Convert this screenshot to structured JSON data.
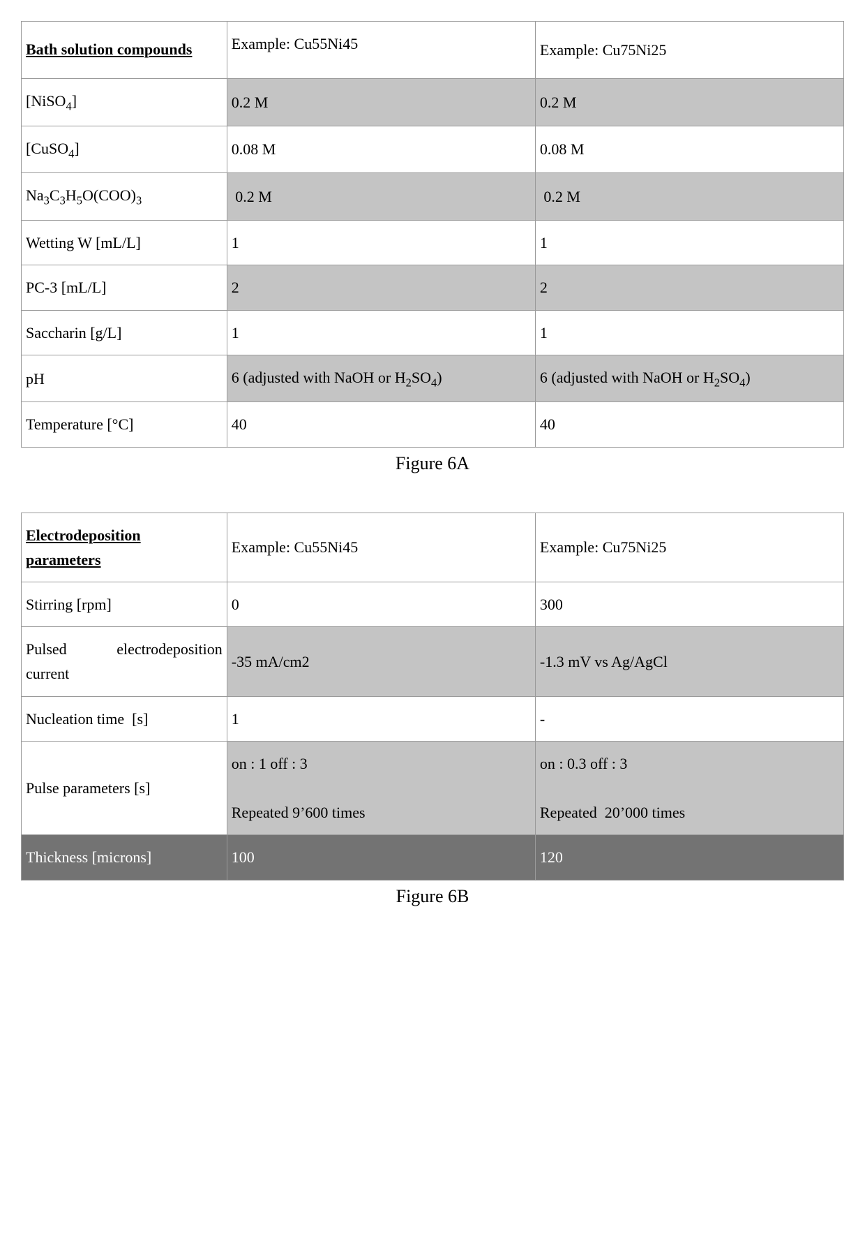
{
  "tableA": {
    "header": {
      "col1": "Bath solution compounds",
      "col2": "Example: Cu55Ni45",
      "col3": "Example: Cu75Ni25"
    },
    "rows": [
      {
        "c1_html": "[NiSO<sub>4</sub>]",
        "c2": "0.2 M",
        "c3": "0.2 M",
        "shade": true
      },
      {
        "c1_html": "[CuSO<sub>4</sub>]",
        "c2": "0.08 M",
        "c3": "0.08 M",
        "shade": false
      },
      {
        "c1_html": "Na<sub>3</sub>C<sub>3</sub>H<sub>5</sub>O(COO)<sub>3</sub>",
        "c2": " 0.2 M",
        "c3": " 0.2 M",
        "shade": true
      },
      {
        "c1_html": "Wetting W [mL/L]",
        "c2": "1",
        "c3": "1",
        "shade": false
      },
      {
        "c1_html": "PC-3 [mL/L]",
        "c2": "2",
        "c3": "2",
        "shade": true
      },
      {
        "c1_html": "Saccharin [g/L]",
        "c2": "1",
        "c3": "1",
        "shade": false
      },
      {
        "c1_html": "pH",
        "c2_html": "6 (adjusted with NaOH or H<sub>2</sub>SO<sub>4</sub>)",
        "c3_html": "6 (adjusted with NaOH or H<sub>2</sub>SO<sub>4</sub>)",
        "shade": true,
        "justify23": true
      },
      {
        "c1_html": "Temperature [°C]",
        "c2": "40",
        "c3": "40",
        "shade": false
      }
    ],
    "caption": "Figure 6A"
  },
  "tableB": {
    "header": {
      "col1_html": "Electrodeposition parameters",
      "col2": "Example: Cu55Ni45",
      "col3": "Example: Cu75Ni25"
    },
    "rows": [
      {
        "c1_html": "Stirring [rpm]",
        "c2": "0",
        "c3": "300",
        "shade": false
      },
      {
        "c1_html": "Pulsed electrodeposition current",
        "c2": "-35 mA/cm2",
        "c3": "-1.3 mV vs Ag/AgCl",
        "shade": true,
        "justify1": true
      },
      {
        "c1_html": "Nucleation time  [s]",
        "c2": "1",
        "c3": "-",
        "shade": false,
        "top2": true
      },
      {
        "c1_html": "Pulse parameters [s]",
        "c2_html": "on : 1 off : 3<br><br>Repeated 9’600 times",
        "c3_html": "on : 0.3 off : 3<br><br>Repeated  20’000 times",
        "shade": true
      },
      {
        "c1_html": "Thickness [microns]",
        "c2": "100",
        "c3": "120",
        "shadeDark": true
      }
    ],
    "caption": "Figure 6B"
  }
}
